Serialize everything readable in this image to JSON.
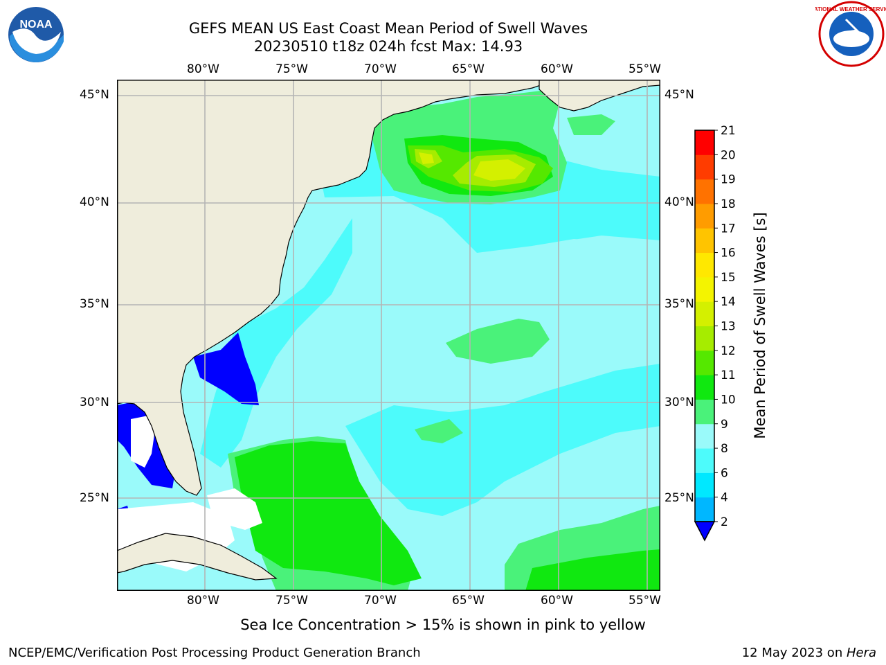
{
  "title": {
    "line1": "GEFS MEAN US East Coast Mean Period of Swell Waves",
    "line2": "20230510 t18z 024h fcst   Max: 14.93"
  },
  "logos": {
    "left": {
      "name": "NOAA",
      "text": "NOAA"
    },
    "right": {
      "name": "National Weather Service",
      "text": "NATIONAL WEATHER SERVICE"
    }
  },
  "map": {
    "lon_labels": [
      "80°W",
      "75°W",
      "70°W",
      "65°W",
      "60°W",
      "55°W"
    ],
    "lat_labels": [
      "45°N",
      "40°N",
      "35°N",
      "30°N",
      "25°N"
    ],
    "lon_range": [
      -85,
      -54.2
    ],
    "lat_range": [
      20.4,
      46.0
    ],
    "grid": true
  },
  "colorbar": {
    "label": "Mean Period of Swell Waves [s]",
    "ticks": [
      "2",
      "4",
      "6",
      "8",
      "9",
      "10",
      "11",
      "12",
      "13",
      "14",
      "15",
      "16",
      "17",
      "18",
      "19",
      "20",
      "21"
    ],
    "colors": [
      "#0a6dff",
      "#00b7ff",
      "#00e8ff",
      "#4dfbfb",
      "#9afafa",
      "#4af27a",
      "#10e810",
      "#55e800",
      "#a6ec00",
      "#d4f000",
      "#f4f400",
      "#ffe800",
      "#ffc400",
      "#ff9c00",
      "#ff7200",
      "#ff3c00",
      "#ff0000"
    ],
    "under_color": "#0000ff"
  },
  "caption": "Sea Ice Concentration > 15% is shown in pink to yellow",
  "footer": {
    "left": "NCEP/EMC/Verification Post Processing Product Generation Branch",
    "right_prefix": "12 May 2023 on ",
    "right_machine": "Hera"
  },
  "colors": {
    "land": "#efeddc",
    "ocean_base": "#9afafa",
    "grid": "#b4b4b4"
  }
}
